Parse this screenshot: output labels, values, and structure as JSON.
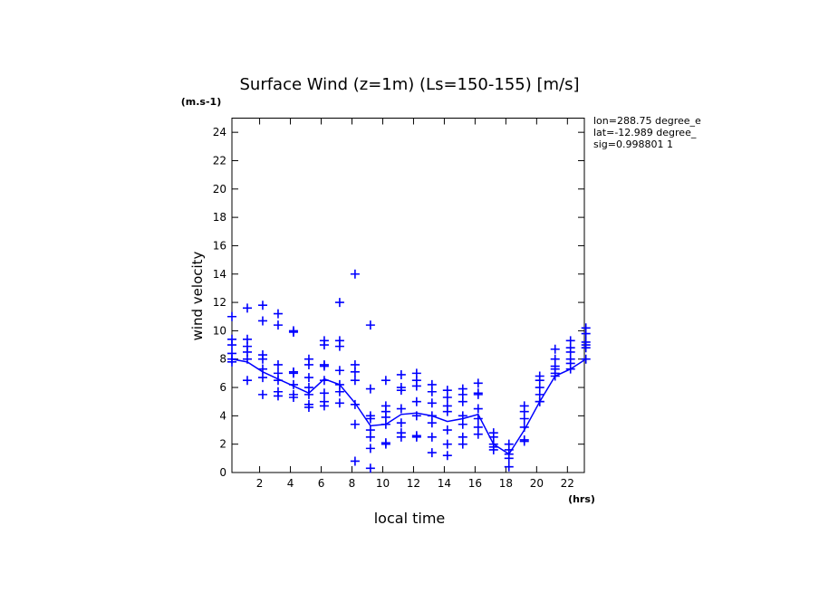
{
  "chart_data": {
    "type": "scatter",
    "title": "Surface Wind (z=1m) (Ls=150-155) [m/s]",
    "y_unit": "(m.s-1)",
    "x_unit": "(hrs)",
    "xlabel": "local time",
    "ylabel": "wind velocity",
    "annotations": [
      "lon=288.75 degree_e",
      "lat=-12.989 degree_",
      "sig=0.998801 1"
    ],
    "xlim": [
      0.2,
      23.1
    ],
    "xticks": [
      2,
      4,
      6,
      8,
      10,
      12,
      14,
      16,
      18,
      20,
      22
    ],
    "ylim": [
      0,
      25
    ],
    "yticks": [
      0,
      2,
      4,
      6,
      8,
      10,
      12,
      14,
      16,
      18,
      20,
      22,
      24
    ],
    "series": [
      {
        "style": "plus",
        "color": "#0000ff",
        "x": [
          0.2,
          0.2,
          0.2,
          0.2,
          0.2,
          0.2,
          1.2,
          1.2,
          1.2,
          1.2,
          1.2,
          1.2,
          2.2,
          2.2,
          2.2,
          2.2,
          2.2,
          2.2,
          2.2,
          3.2,
          3.2,
          3.2,
          3.2,
          3.2,
          3.2,
          3.2,
          4.2,
          4.2,
          4.2,
          4.2,
          4.2,
          4.2,
          4.2,
          5.2,
          5.2,
          5.2,
          5.2,
          5.2,
          5.2,
          5.2,
          6.2,
          6.2,
          6.2,
          6.2,
          6.2,
          6.2,
          6.2,
          6.2,
          7.2,
          7.2,
          7.2,
          7.2,
          7.2,
          7.2,
          7.2,
          8.2,
          8.2,
          8.2,
          8.2,
          8.2,
          8.2,
          8.2,
          9.2,
          9.2,
          9.2,
          9.2,
          9.2,
          9.2,
          9.2,
          9.2,
          10.2,
          10.2,
          10.2,
          10.2,
          10.2,
          10.2,
          10.2,
          11.2,
          11.2,
          11.2,
          11.2,
          11.2,
          11.2,
          11.2,
          12.2,
          12.2,
          12.2,
          12.2,
          12.2,
          12.2,
          12.2,
          13.2,
          13.2,
          13.2,
          13.2,
          13.2,
          13.2,
          13.2,
          14.2,
          14.2,
          14.2,
          14.2,
          14.2,
          14.2,
          14.2,
          15.2,
          15.2,
          15.2,
          15.2,
          15.2,
          15.2,
          15.2,
          16.2,
          16.2,
          16.2,
          16.2,
          16.2,
          16.2,
          16.2,
          17.2,
          17.2,
          17.2,
          17.2,
          17.2,
          18.2,
          18.2,
          18.2,
          18.2,
          18.2,
          19.2,
          19.2,
          19.2,
          19.2,
          19.2,
          19.2,
          20.2,
          20.2,
          20.2,
          20.2,
          20.2,
          20.2,
          21.2,
          21.2,
          21.2,
          21.2,
          21.2,
          21.2,
          22.2,
          22.2,
          22.2,
          22.2,
          22.2,
          22.2,
          23.2,
          23.2,
          23.2,
          23.2,
          23.2,
          23.2
        ],
        "values": [
          11.0,
          9.4,
          9.0,
          8.4,
          8.0,
          7.8,
          11.6,
          9.4,
          8.9,
          8.5,
          8.0,
          6.5,
          11.8,
          10.7,
          8.3,
          8.0,
          7.3,
          6.7,
          5.5,
          11.2,
          10.4,
          7.6,
          7.0,
          6.5,
          5.7,
          5.4,
          10.0,
          9.9,
          7.1,
          7.0,
          6.2,
          5.5,
          5.3,
          8.0,
          7.6,
          6.7,
          6.0,
          5.5,
          4.8,
          4.6,
          9.3,
          9.0,
          7.6,
          7.5,
          6.5,
          5.6,
          5.0,
          4.7,
          12.0,
          9.3,
          8.9,
          7.2,
          6.2,
          5.7,
          4.9,
          14.0,
          7.6,
          7.1,
          6.5,
          4.8,
          3.4,
          0.8,
          10.4,
          5.9,
          4.0,
          3.8,
          3.0,
          2.5,
          1.7,
          0.3,
          6.5,
          4.7,
          4.3,
          3.9,
          3.4,
          2.1,
          2.0,
          6.9,
          6.0,
          5.8,
          4.5,
          3.5,
          2.8,
          2.5,
          7.0,
          6.5,
          6.1,
          5.0,
          4.0,
          2.6,
          2.5,
          6.2,
          5.7,
          4.9,
          4.0,
          3.5,
          2.5,
          1.4,
          5.8,
          5.3,
          4.7,
          4.3,
          3.0,
          2.0,
          1.2,
          5.9,
          5.5,
          5.0,
          4.0,
          3.4,
          2.5,
          2.0,
          6.3,
          5.6,
          5.5,
          4.5,
          3.8,
          3.2,
          2.7,
          2.8,
          2.5,
          2.0,
          1.8,
          1.6,
          2.0,
          1.6,
          1.3,
          1.0,
          0.4,
          4.7,
          4.3,
          3.8,
          3.2,
          2.3,
          2.2,
          6.8,
          6.5,
          6.0,
          5.5,
          5.0,
          5.0,
          8.7,
          8.0,
          7.5,
          7.3,
          7.0,
          6.8,
          9.3,
          8.8,
          8.5,
          8.0,
          7.7,
          7.3,
          10.2,
          9.8,
          9.2,
          9.0,
          8.8,
          8.0
        ]
      },
      {
        "style": "line",
        "color": "#0000ff",
        "x": [
          0.2,
          1.2,
          2.2,
          3.2,
          4.2,
          5.2,
          6.2,
          7.2,
          8.2,
          9.2,
          10.2,
          11.2,
          12.2,
          13.2,
          14.2,
          15.2,
          16.2,
          17.2,
          18.2,
          19.2,
          20.2,
          21.2,
          22.2,
          23.2
        ],
        "values": [
          8.0,
          7.8,
          7.1,
          6.6,
          6.1,
          5.6,
          6.6,
          6.2,
          4.9,
          3.3,
          3.4,
          4.1,
          4.2,
          4.0,
          3.6,
          3.8,
          4.1,
          2.0,
          1.3,
          3.0,
          5.0,
          6.8,
          7.3,
          8.0
        ]
      }
    ]
  }
}
